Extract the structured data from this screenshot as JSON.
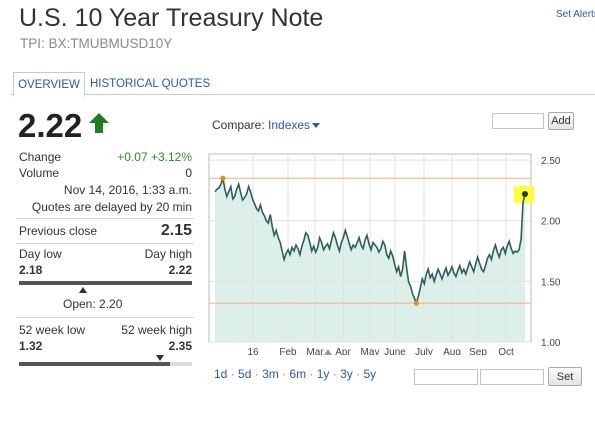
{
  "header": {
    "title": "U.S. 10 Year Treasury Note",
    "ticker": "TPI: BX:TMUBMUSD10Y",
    "set_alerts": "Set Alerts"
  },
  "tabs": [
    {
      "label": "OVERVIEW",
      "active": true
    },
    {
      "label": "HISTORICAL QUOTES",
      "active": false
    }
  ],
  "quote": {
    "price": "2.22",
    "direction": "up",
    "change_label": "Change",
    "change_value": "+0.07 +3.12%",
    "volume_label": "Volume",
    "volume_value": "0",
    "timestamp": "Nov 14, 2016, 1:33 a.m.",
    "delay_note": "Quotes are delayed by 20 min",
    "prev_close_label": "Previous close",
    "prev_close_value": "2.15",
    "day_low_label": "Day low",
    "day_high_label": "Day high",
    "day_low_value": "2.18",
    "day_high_value": "2.22",
    "open_text": "Open: 2.20",
    "wk52_low_label": "52 week low",
    "wk52_high_label": "52 week high",
    "wk52_low_value": "1.32",
    "wk52_high_value": "2.35"
  },
  "compare": {
    "label": "Compare:",
    "dropdown": "Indexes",
    "add_button": "Add"
  },
  "ranges": [
    "1d",
    "5d",
    "3m",
    "6m",
    "1y",
    "3y",
    "5y"
  ],
  "selected_range": "1y",
  "set_button": "Set",
  "colors": {
    "link": "#2a5aa8",
    "up": "#1e7d1e",
    "line": "#2d5f5a",
    "area": "#dcefe9",
    "highlight": "#ffff33",
    "marker_low_high": "#e68a1e",
    "ref_line": "#f0b07a"
  },
  "chart_data": {
    "type": "line",
    "title": "",
    "xlabel": "",
    "ylabel": "",
    "x_tick_labels": [
      "16",
      "Feb",
      "Mar",
      "Apr",
      "May",
      "June",
      "July",
      "Aug",
      "Sep",
      "Oct"
    ],
    "y_tick_labels": [
      "2.50",
      "2.00",
      "1.50",
      "1.00"
    ],
    "ylim": [
      1.0,
      2.5
    ],
    "grid": true,
    "reference_lines": [
      2.35,
      1.32
    ],
    "series": [
      {
        "values": [
          2.24,
          2.26,
          2.27,
          2.3,
          2.35,
          2.26,
          2.2,
          2.24,
          2.28,
          2.18,
          2.2,
          2.26,
          2.3,
          2.23,
          2.17,
          2.19,
          2.22,
          2.28,
          2.24,
          2.18,
          2.14,
          2.1,
          2.08,
          2.13,
          2.07,
          2.04,
          2.0,
          1.98,
          2.05,
          1.95,
          1.88,
          1.92,
          1.86,
          1.82,
          1.75,
          1.68,
          1.73,
          1.76,
          1.72,
          1.78,
          1.75,
          1.8,
          1.77,
          1.72,
          1.79,
          1.84,
          1.9,
          1.88,
          1.82,
          1.75,
          1.79,
          1.74,
          1.78,
          1.86,
          1.82,
          1.76,
          1.79,
          1.81,
          1.77,
          1.84,
          1.9,
          1.86,
          1.8,
          1.75,
          1.82,
          1.86,
          1.92,
          1.87,
          1.81,
          1.76,
          1.8,
          1.78,
          1.82,
          1.86,
          1.8,
          1.77,
          1.84,
          1.88,
          1.81,
          1.76,
          1.82,
          1.8,
          1.78,
          1.74,
          1.77,
          1.83,
          1.8,
          1.72,
          1.69,
          1.75,
          1.71,
          1.64,
          1.58,
          1.62,
          1.54,
          1.6,
          1.75,
          1.62,
          1.5,
          1.46,
          1.4,
          1.36,
          1.32,
          1.38,
          1.45,
          1.52,
          1.48,
          1.56,
          1.6,
          1.53,
          1.56,
          1.5,
          1.55,
          1.6,
          1.56,
          1.52,
          1.57,
          1.61,
          1.55,
          1.58,
          1.62,
          1.57,
          1.54,
          1.59,
          1.63,
          1.57,
          1.6,
          1.56,
          1.61,
          1.66,
          1.62,
          1.58,
          1.64,
          1.7,
          1.65,
          1.6,
          1.58,
          1.63,
          1.69,
          1.72,
          1.68,
          1.75,
          1.8,
          1.74,
          1.7,
          1.76,
          1.78,
          1.73,
          1.79,
          1.83,
          1.77,
          1.73,
          1.75,
          1.74,
          1.76,
          1.85,
          2.15,
          2.22
        ],
        "start_label": "16",
        "end_label": "Oct"
      }
    ],
    "markers": [
      {
        "label": "52-week high",
        "value": 2.35
      },
      {
        "label": "52-week low",
        "value": 1.32
      },
      {
        "label": "last",
        "value": 2.22
      }
    ]
  }
}
